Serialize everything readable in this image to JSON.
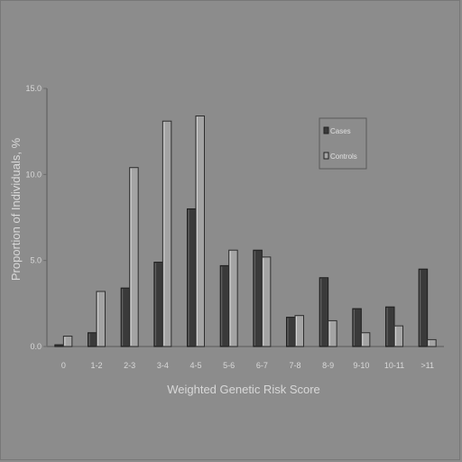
{
  "chart_data": {
    "type": "bar",
    "title": "",
    "xlabel": "Weighted Genetic Risk Score",
    "ylabel": "Proportion of Individuals, %",
    "ylim": [
      0,
      15
    ],
    "yticks": [
      "0.0",
      "5.0",
      "10.0",
      "15.0"
    ],
    "ytick_values": [
      0,
      5,
      10,
      15
    ],
    "categories": [
      "0",
      "1-2",
      "2-3",
      "3-4",
      "4-5",
      "5-6",
      "6-7",
      "7-8",
      "8-9",
      "9-10",
      "10-11",
      ">11"
    ],
    "series": [
      {
        "name": "Cases",
        "color": "#3a3a3a",
        "values": [
          0.1,
          0.8,
          3.4,
          4.9,
          8.0,
          4.7,
          5.6,
          1.7,
          4.0,
          2.2,
          2.3,
          4.5
        ]
      },
      {
        "name": "Controls",
        "color": "#a4a4a4",
        "values": [
          0.6,
          3.2,
          10.4,
          13.1,
          13.4,
          5.6,
          5.2,
          1.8,
          1.5,
          0.8,
          1.2,
          0.4
        ]
      }
    ],
    "grid": false,
    "legend_position": "top-right"
  }
}
